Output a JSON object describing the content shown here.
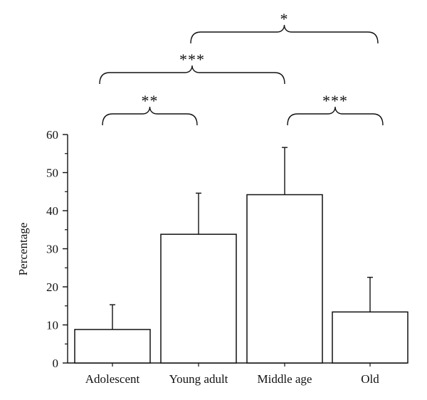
{
  "chart_data": {
    "type": "bar",
    "title": "",
    "xlabel": "",
    "ylabel": "Percentage",
    "ylim": [
      0,
      60
    ],
    "yticks": [
      0,
      10,
      20,
      30,
      40,
      50,
      60
    ],
    "grid": false,
    "legend": "none",
    "categories": [
      "Adolescent",
      "Young adult",
      "Middle age",
      "Old"
    ],
    "values": [
      8.8,
      33.8,
      44.2,
      13.4
    ],
    "error_upper": [
      6.5,
      10.8,
      12.4,
      9.1
    ],
    "significance": [
      {
        "from": "Adolescent",
        "to": "Young adult",
        "label": "**"
      },
      {
        "from": "Adolescent",
        "to": "Middle age",
        "label": "***"
      },
      {
        "from": "Young adult",
        "to": "Old",
        "label": "*"
      },
      {
        "from": "Middle age",
        "to": "Old",
        "label": "***"
      }
    ]
  },
  "colors": {
    "bar_fill": "#ffffff",
    "stroke": "#111111"
  }
}
